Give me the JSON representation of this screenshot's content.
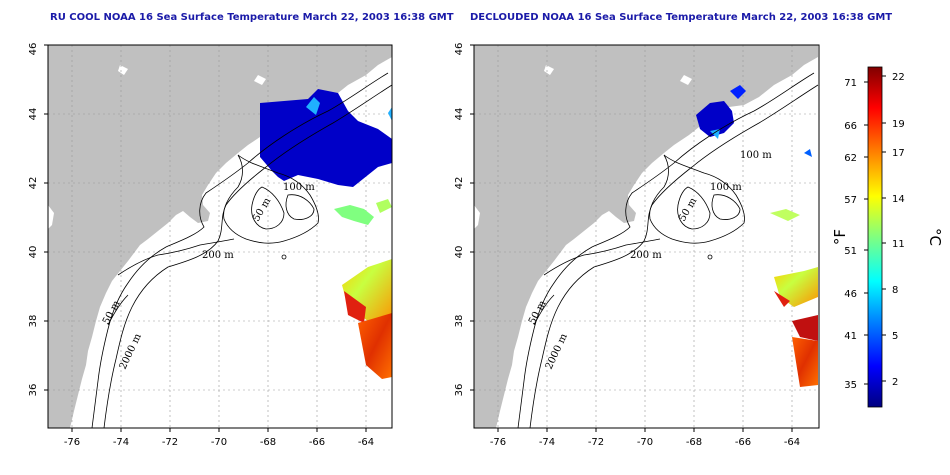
{
  "panels": [
    {
      "id": "left",
      "title": "RU COOL NOAA 16 Sea Surface Temperature March 22, 2003 16:38 GMT",
      "contour_labels": [
        "100 m",
        "50 m",
        "200 m",
        "50 m",
        "2000 m"
      ]
    },
    {
      "id": "right",
      "title": "DECLOUDED NOAA 16 Sea Surface Temperature March 22, 2003 16:38 GMT",
      "contour_labels": [
        "100 m",
        "100 m",
        "50 m",
        "200 m",
        "50 m",
        "2000 m"
      ]
    }
  ],
  "map_axes": {
    "x_ticks": [
      "-76",
      "-74",
      "-72",
      "-70",
      "-68",
      "-66",
      "-64"
    ],
    "y_ticks": [
      "36",
      "38",
      "40",
      "42",
      "44",
      "46"
    ],
    "lon_range": [
      -77.0,
      -63.0
    ],
    "lat_range": [
      35.0,
      46.0
    ],
    "gridlines": "dotted",
    "land_color": "#c0c0c0",
    "water_color": "#ffffff"
  },
  "colorbar": {
    "fahrenheit_ticks": [
      "71",
      "66",
      "62",
      "57",
      "51",
      "46",
      "41",
      "35"
    ],
    "celsius_ticks": [
      "22",
      "19",
      "17",
      "14",
      "11",
      "8",
      "5",
      "2"
    ],
    "fahrenheit_unit": "°F",
    "celsius_unit": "°C",
    "colors": [
      "#000080",
      "#0000ff",
      "#0080ff",
      "#00ffff",
      "#80ff80",
      "#ffff00",
      "#ff8000",
      "#ff0000",
      "#800000"
    ]
  }
}
